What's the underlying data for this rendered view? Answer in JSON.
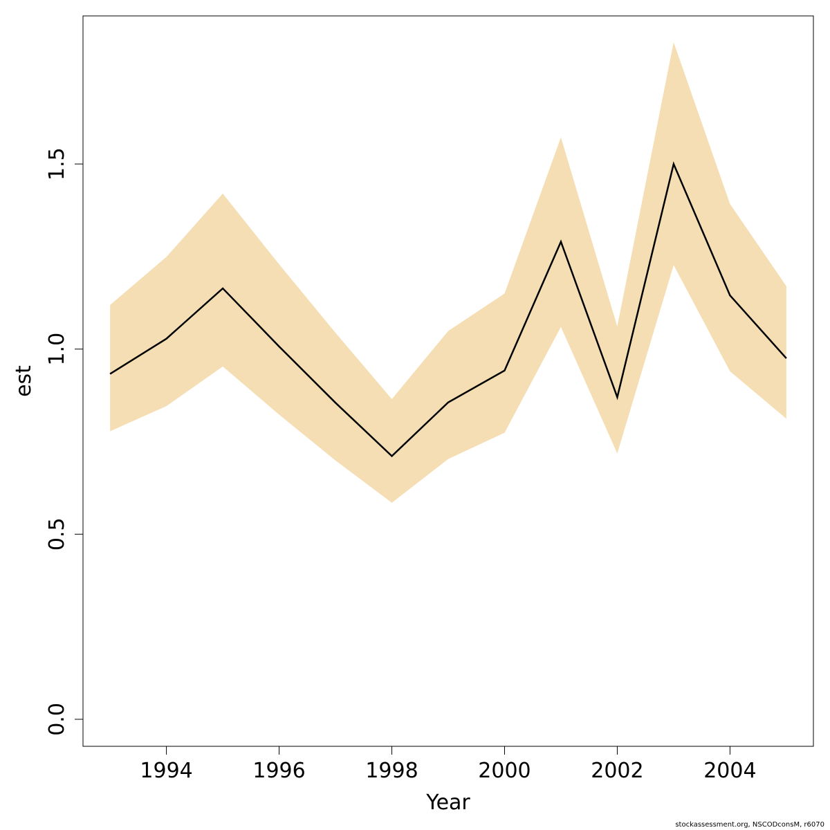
{
  "chart_data": {
    "type": "line",
    "title": "",
    "xlabel": "Year",
    "ylabel": "est",
    "x": [
      1993,
      1994,
      1995,
      1996,
      1997,
      1998,
      1999,
      2000,
      2001,
      2002,
      2003,
      2004,
      2005
    ],
    "series": [
      {
        "values": [
          0.933,
          1.028,
          1.164,
          1.007,
          0.855,
          0.711,
          0.856,
          0.942,
          1.29,
          0.87,
          1.5,
          1.145,
          0.975
        ],
        "color": "#000000"
      }
    ],
    "band": {
      "lower": [
        0.778,
        0.846,
        0.953,
        0.823,
        0.699,
        0.585,
        0.703,
        0.774,
        1.06,
        0.718,
        1.227,
        0.94,
        0.812
      ],
      "upper": [
        1.119,
        1.249,
        1.42,
        1.229,
        1.044,
        0.865,
        1.049,
        1.15,
        1.572,
        1.061,
        1.829,
        1.392,
        1.17
      ],
      "color": "#F5DEB3"
    },
    "xticks": [
      "1994",
      "1996",
      "1998",
      "2000",
      "2002",
      "2004"
    ],
    "yticks": [
      "0.0",
      "0.5",
      "1.0",
      "1.5"
    ],
    "xlim": [
      1992.52,
      2005.48
    ],
    "ylim": [
      -0.073,
      1.9
    ],
    "grid": false
  },
  "footer": "stockassessment.org, NSCODconsM, r6070"
}
